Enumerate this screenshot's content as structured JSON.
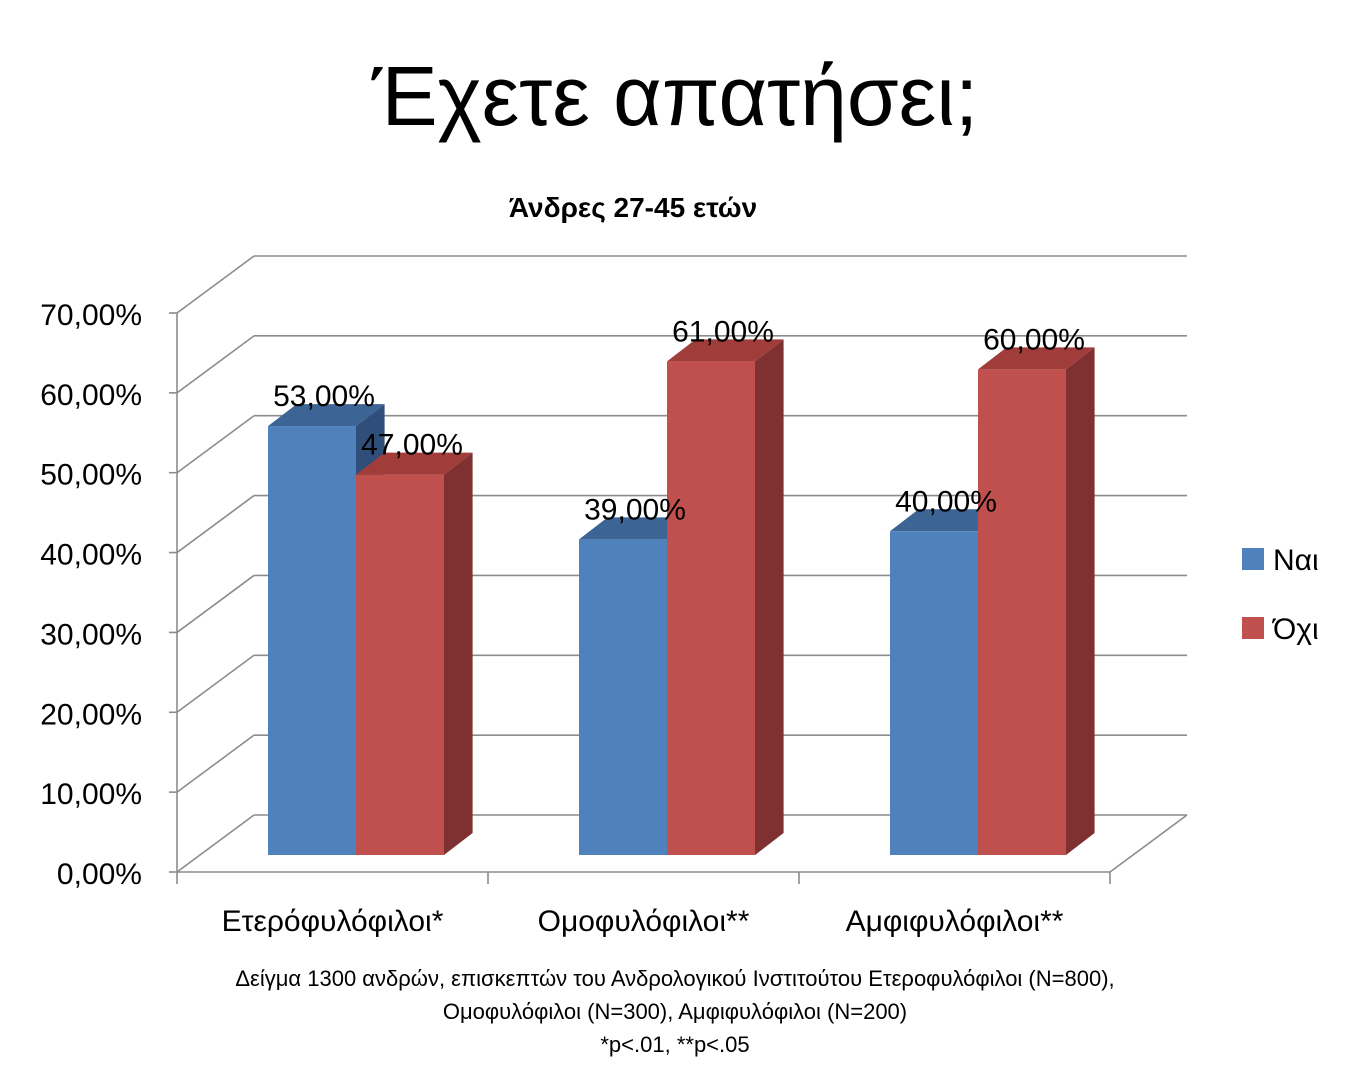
{
  "slide_title": "Έχετε απατήσει;",
  "footnote": {
    "line1": "Δείγμα 1300 ανδρών, επισκεπτών του Ανδρολογικού Ινστιτούτου Ετεροφυλόφιλοι (N=800),",
    "line2": "Ομοφυλόφιλοι (N=300), Αμφιφυλόφιλοι (N=200)",
    "line3": "*p<.01, **p<.05"
  },
  "chart_data": {
    "type": "bar",
    "title": "Άνδρες 27-45 ετών",
    "categories": [
      "Ετερόφυλόφιλοι*",
      "Ομοφυλόφιλοι**",
      "Αμφιφυλόφιλοι**"
    ],
    "series": [
      {
        "name": "Ναι",
        "values": [
          53,
          39,
          40
        ],
        "labels": [
          "53,00%",
          "39,00%",
          "40,00%"
        ],
        "color": "#4f81bd",
        "top_color": "#3c6494",
        "side_color": "#2f4f7a"
      },
      {
        "name": "Όχι",
        "values": [
          47,
          61,
          60
        ],
        "labels": [
          "47,00%",
          "61,00%",
          "60,00%"
        ],
        "color": "#c0504d",
        "top_color": "#a03c39",
        "side_color": "#7f3131"
      }
    ],
    "ylim": [
      0,
      70
    ],
    "y_ticks": [
      "0,00%",
      "10,00%",
      "20,00%",
      "30,00%",
      "40,00%",
      "50,00%",
      "60,00%",
      "70,00%"
    ],
    "grid": true,
    "legend_position": "right",
    "chart_3d": true
  }
}
